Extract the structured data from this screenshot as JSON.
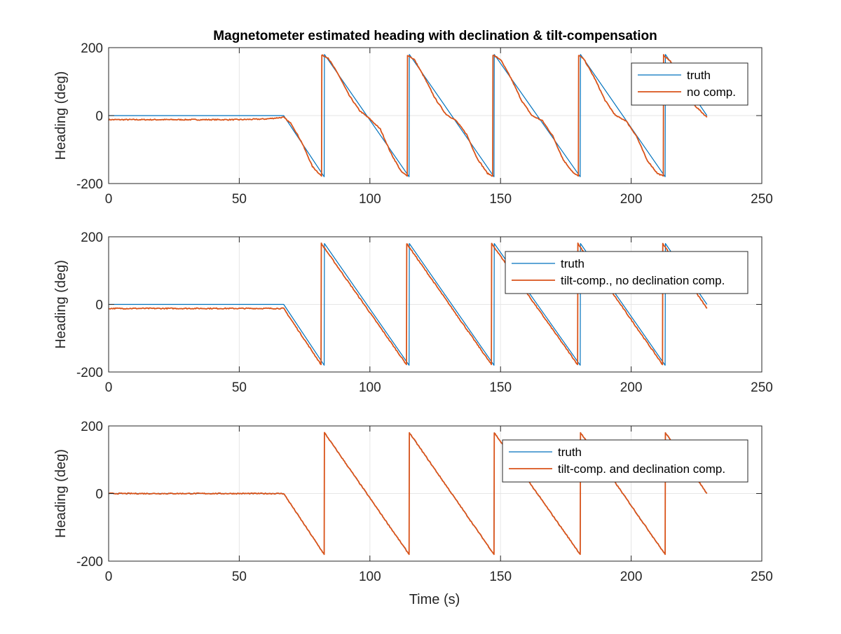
{
  "figure": {
    "title": "Magnetometer estimated heading with declination & tilt-compensation",
    "xlabel": "Time (s)"
  },
  "colors": {
    "truth": "#0072BD",
    "estimate": "#D95319",
    "grid": "#e6e6e6",
    "axis": "#262626"
  },
  "chart_data": [
    {
      "type": "line",
      "ylabel": "Heading (deg)",
      "xlim": [
        0,
        250
      ],
      "ylim": [
        -200,
        200
      ],
      "xticks": [
        "0",
        "50",
        "100",
        "150",
        "200",
        "250"
      ],
      "yticks": [
        "-200",
        "0",
        "200"
      ],
      "grid": true,
      "legend_position": "top-right",
      "series": [
        {
          "name": "truth",
          "x": [
            0,
            67,
            82.5,
            82.6,
            115,
            115.1,
            147.5,
            147.6,
            180.5,
            180.6,
            213,
            213.1,
            229
          ],
          "y": [
            0,
            0,
            -180,
            180,
            -180,
            180,
            -180,
            180,
            -180,
            180,
            -180,
            180,
            0
          ]
        },
        {
          "name": "no comp.",
          "x": [
            0,
            50,
            60,
            67,
            70,
            74,
            78,
            81.5,
            81.6,
            84,
            88,
            92,
            96,
            100,
            104,
            108,
            112,
            114.3,
            114.4,
            117,
            121,
            125,
            129,
            133,
            137,
            141,
            145,
            147,
            147.1,
            150,
            154,
            158,
            162,
            166,
            170,
            174,
            178,
            179.8,
            179.9,
            182,
            186,
            190,
            194,
            198,
            202,
            206,
            210,
            212.3,
            212.4,
            215,
            219,
            223,
            229
          ],
          "y": [
            -12,
            -12,
            -10,
            -5,
            -25,
            -80,
            -150,
            -178,
            178,
            170,
            120,
            60,
            15,
            -10,
            -40,
            -110,
            -165,
            -178,
            178,
            165,
            110,
            50,
            5,
            -15,
            -55,
            -125,
            -170,
            -178,
            178,
            165,
            110,
            45,
            0,
            -15,
            -60,
            -130,
            -170,
            -178,
            178,
            165,
            110,
            45,
            0,
            -15,
            -60,
            -130,
            -170,
            -178,
            178,
            160,
            100,
            40,
            -5
          ]
        }
      ]
    },
    {
      "type": "line",
      "ylabel": "Heading (deg)",
      "xlim": [
        0,
        250
      ],
      "ylim": [
        -200,
        200
      ],
      "xticks": [
        "0",
        "50",
        "100",
        "150",
        "200",
        "250"
      ],
      "yticks": [
        "-200",
        "0",
        "200"
      ],
      "grid": true,
      "legend_position": "top-right",
      "series": [
        {
          "name": "truth",
          "x": [
            0,
            67,
            82.5,
            82.6,
            115,
            115.1,
            147.5,
            147.6,
            180.5,
            180.6,
            213,
            213.1,
            229
          ],
          "y": [
            0,
            0,
            -180,
            180,
            -180,
            180,
            -180,
            180,
            -180,
            180,
            -180,
            180,
            0
          ]
        },
        {
          "name": "tilt-comp., no declination comp.",
          "x": [
            0,
            67,
            81.3,
            81.4,
            114,
            114.1,
            146.5,
            146.6,
            179.5,
            179.6,
            212,
            212.1,
            229
          ],
          "y": [
            -12,
            -12,
            -178,
            180,
            -178,
            180,
            -178,
            180,
            -178,
            180,
            -178,
            180,
            -12
          ]
        }
      ]
    },
    {
      "type": "line",
      "ylabel": "Heading (deg)",
      "xlim": [
        0,
        250
      ],
      "ylim": [
        -200,
        200
      ],
      "xticks": [
        "0",
        "50",
        "100",
        "150",
        "200",
        "250"
      ],
      "yticks": [
        "-200",
        "0",
        "200"
      ],
      "grid": true,
      "legend_position": "top-right",
      "series": [
        {
          "name": "truth",
          "x": [
            0,
            67,
            82.5,
            82.6,
            115,
            115.1,
            147.5,
            147.6,
            180.5,
            180.6,
            213,
            213.1,
            229
          ],
          "y": [
            0,
            0,
            -180,
            180,
            -180,
            180,
            -180,
            180,
            -180,
            180,
            -180,
            180,
            0
          ]
        },
        {
          "name": "tilt-comp. and declination comp.",
          "x": [
            0,
            67,
            82.5,
            82.6,
            115,
            115.1,
            147.5,
            147.6,
            180.5,
            180.6,
            213,
            213.1,
            229
          ],
          "y": [
            0,
            0,
            -180,
            180,
            -180,
            180,
            -180,
            180,
            -180,
            180,
            -180,
            180,
            0
          ]
        }
      ]
    }
  ]
}
